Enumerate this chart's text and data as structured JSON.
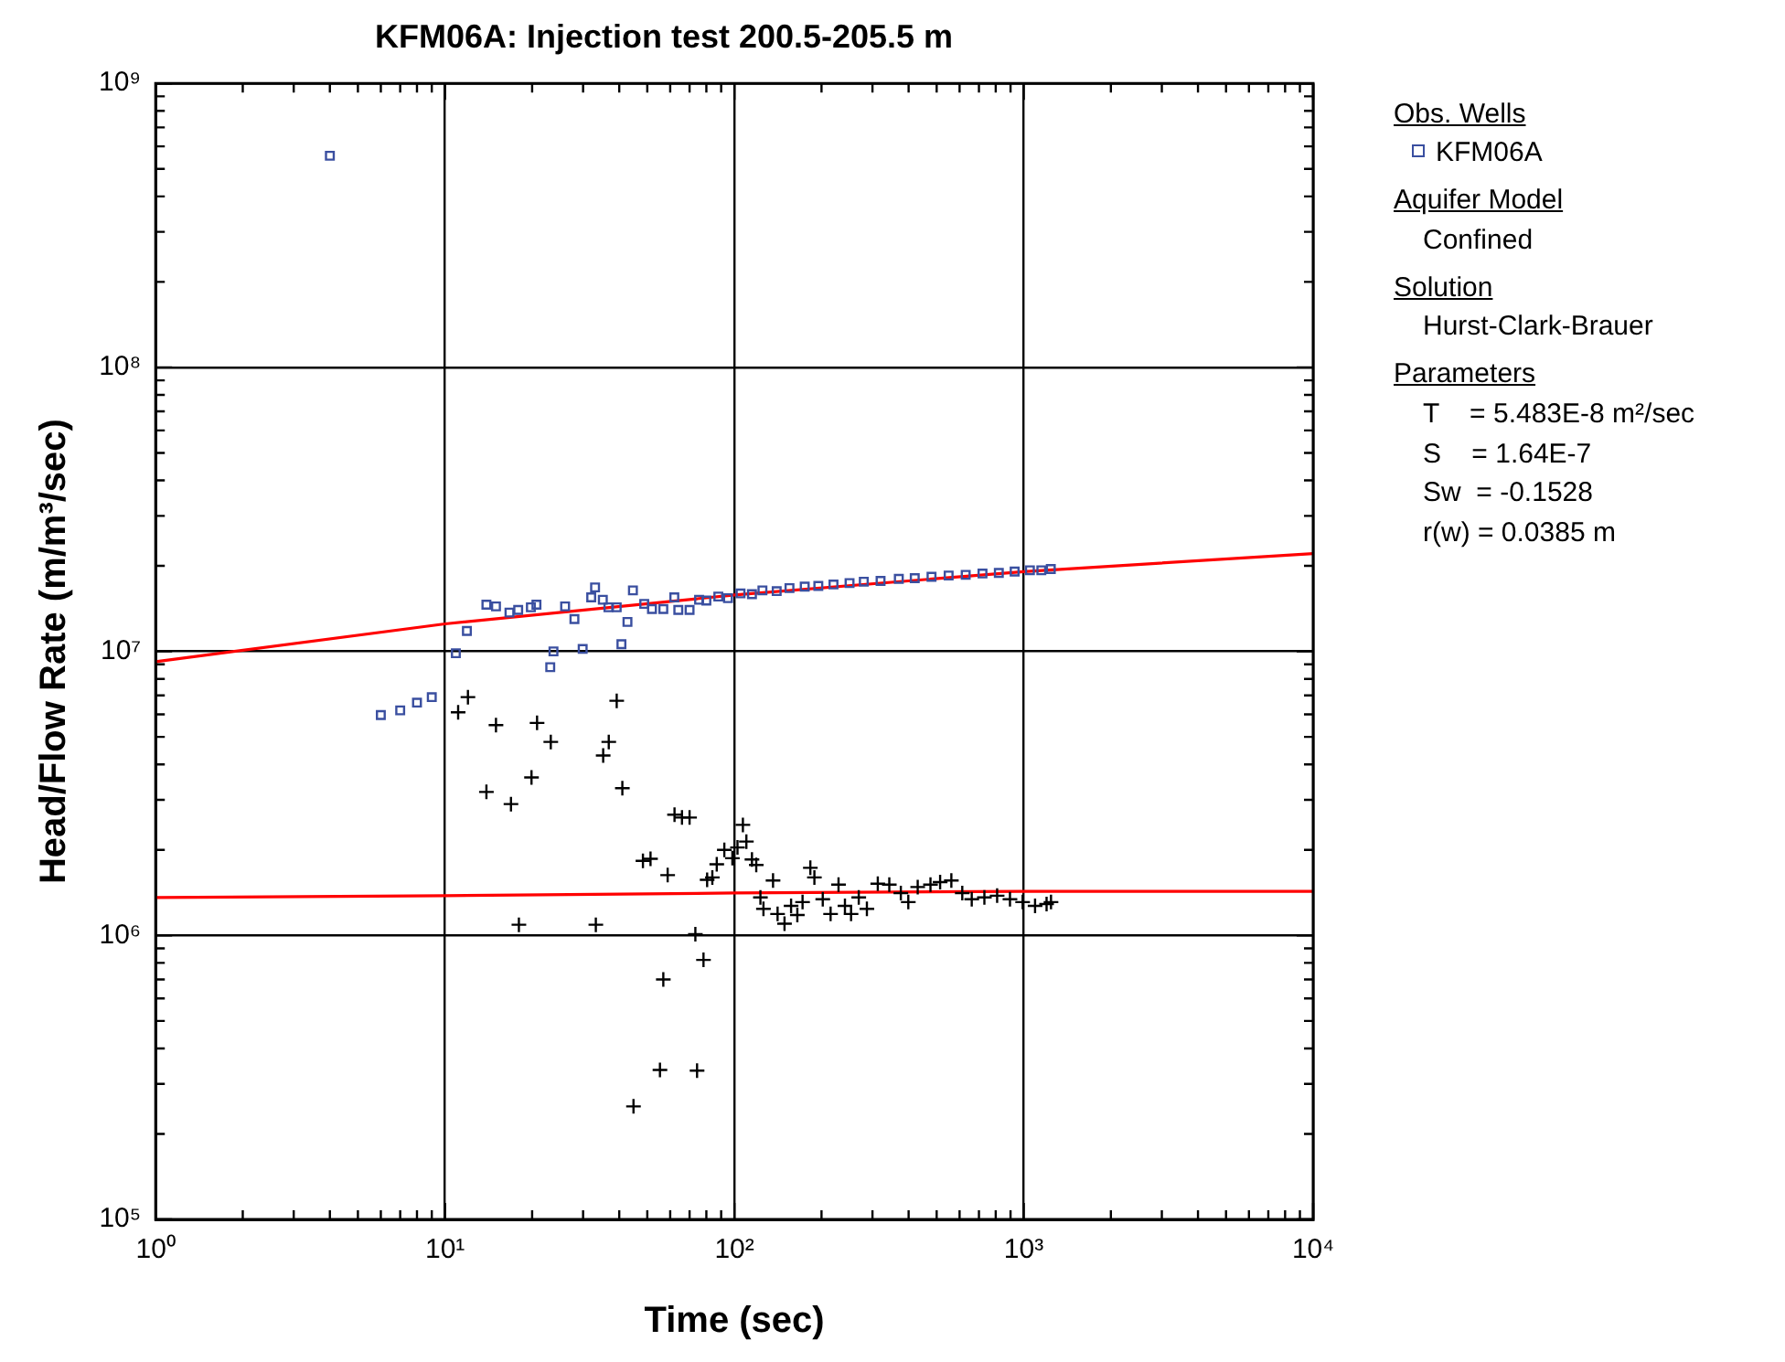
{
  "chart_data": {
    "type": "scatter",
    "title": "KFM06A: Injection test 200.5-205.5 m",
    "xlabel": "Time (sec)",
    "ylabel": "Head/Flow Rate (m/m³/sec)",
    "legend_title": "Obs. Wells",
    "legend": "right",
    "grid": true,
    "log": "xy",
    "xlim": [
      1,
      10000
    ],
    "ylim": [
      100000,
      1000000000
    ],
    "xticks": [
      {
        "value": 1,
        "label": "10⁰"
      },
      {
        "value": 2,
        "label": null
      },
      {
        "value": 3,
        "label": null
      },
      {
        "value": 4,
        "label": null
      },
      {
        "value": 5,
        "label": null
      },
      {
        "value": 6,
        "label": null
      },
      {
        "value": 7,
        "label": null
      },
      {
        "value": 8,
        "label": null
      },
      {
        "value": 9,
        "label": null
      },
      {
        "value": 10,
        "label": "10¹"
      },
      {
        "value": 20,
        "label": null
      },
      {
        "value": 30,
        "label": null
      },
      {
        "value": 40,
        "label": null
      },
      {
        "value": 50,
        "label": null
      },
      {
        "value": 60,
        "label": null
      },
      {
        "value": 70,
        "label": null
      },
      {
        "value": 80,
        "label": null
      },
      {
        "value": 90,
        "label": null
      },
      {
        "value": 100,
        "label": "10²"
      },
      {
        "value": 200,
        "label": null
      },
      {
        "value": 300,
        "label": null
      },
      {
        "value": 400,
        "label": null
      },
      {
        "value": 500,
        "label": null
      },
      {
        "value": 600,
        "label": null
      },
      {
        "value": 700,
        "label": null
      },
      {
        "value": 800,
        "label": null
      },
      {
        "value": 900,
        "label": null
      },
      {
        "value": 1000,
        "label": "10³"
      },
      {
        "value": 2000,
        "label": null
      },
      {
        "value": 3000,
        "label": null
      },
      {
        "value": 4000,
        "label": null
      },
      {
        "value": 5000,
        "label": null
      },
      {
        "value": 6000,
        "label": null
      },
      {
        "value": 7000,
        "label": null
      },
      {
        "value": 8000,
        "label": null
      },
      {
        "value": 9000,
        "label": null
      },
      {
        "value": 10000,
        "label": "10⁴"
      }
    ],
    "yticks": [
      {
        "value": 100000,
        "label": "10⁵"
      },
      {
        "value": 200000,
        "label": null
      },
      {
        "value": 300000,
        "label": null
      },
      {
        "value": 400000,
        "label": null
      },
      {
        "value": 500000,
        "label": null
      },
      {
        "value": 600000,
        "label": null
      },
      {
        "value": 700000,
        "label": null
      },
      {
        "value": 800000,
        "label": null
      },
      {
        "value": 900000,
        "label": null
      },
      {
        "value": 1000000,
        "label": "10⁶"
      },
      {
        "value": 2000000,
        "label": null
      },
      {
        "value": 3000000,
        "label": null
      },
      {
        "value": 4000000,
        "label": null
      },
      {
        "value": 5000000,
        "label": null
      },
      {
        "value": 6000000,
        "label": null
      },
      {
        "value": 7000000,
        "label": null
      },
      {
        "value": 8000000,
        "label": null
      },
      {
        "value": 9000000,
        "label": null
      },
      {
        "value": 10000000,
        "label": "10⁷"
      },
      {
        "value": 20000000,
        "label": null
      },
      {
        "value": 30000000,
        "label": null
      },
      {
        "value": 40000000,
        "label": null
      },
      {
        "value": 50000000,
        "label": null
      },
      {
        "value": 60000000,
        "label": null
      },
      {
        "value": 70000000,
        "label": null
      },
      {
        "value": 80000000,
        "label": null
      },
      {
        "value": 90000000,
        "label": null
      },
      {
        "value": 100000000,
        "label": "10⁸"
      },
      {
        "value": 200000000,
        "label": null
      },
      {
        "value": 300000000,
        "label": null
      },
      {
        "value": 400000000,
        "label": null
      },
      {
        "value": 500000000,
        "label": null
      },
      {
        "value": 600000000,
        "label": null
      },
      {
        "value": 700000000,
        "label": null
      },
      {
        "value": 800000000,
        "label": null
      },
      {
        "value": 900000000,
        "label": null
      },
      {
        "value": 1000000000,
        "label": "10⁹"
      }
    ],
    "series": [
      {
        "name": "KFM06A",
        "marker": "square",
        "color": "#3a4fa0",
        "x": [
          4,
          6,
          7,
          8,
          9,
          10.9,
          11.9,
          13.9,
          15,
          16.7,
          17.9,
          19.8,
          20.7,
          23.1,
          23.7,
          26,
          28,
          29.9,
          32,
          33,
          35.1,
          36.7,
          39.2,
          40.7,
          42.7,
          44.6,
          48.8,
          51.9,
          56.8,
          62,
          64,
          70,
          75.5,
          80,
          88,
          95,
          105,
          115,
          125,
          140,
          155,
          175,
          195,
          220,
          250,
          280,
          320,
          370,
          420,
          480,
          550,
          630,
          720,
          820,
          930,
          1050,
          1150,
          1240
        ],
        "values": [
          556000000,
          5970000,
          6200000,
          6600000,
          6900000,
          9850000,
          11800000,
          14600000,
          14400000,
          13700000,
          14000000,
          14300000,
          14600000,
          8800000,
          10000000,
          14400000,
          13000000,
          10200000,
          15500000,
          16800000,
          15200000,
          14300000,
          14300000,
          10600000,
          12700000,
          16400000,
          14700000,
          14100000,
          14100000,
          15500000,
          14000000,
          14000000,
          15200000,
          15100000,
          15600000,
          15400000,
          16000000,
          15900000,
          16400000,
          16300000,
          16700000,
          16900000,
          17000000,
          17200000,
          17400000,
          17600000,
          17700000,
          18000000,
          18100000,
          18300000,
          18500000,
          18600000,
          18800000,
          18900000,
          19100000,
          19300000,
          19300000,
          19500000
        ]
      },
      {
        "marker": "cross",
        "color": "#000000",
        "x": [
          11.1,
          12,
          13.9,
          15,
          16.9,
          18,
          19.9,
          20.8,
          23.2,
          33.2,
          35.2,
          36.8,
          39.2,
          41,
          44.8,
          48.3,
          51.3,
          55.3,
          56.8,
          58.8,
          62.1,
          65.9,
          70,
          73.3,
          74.3,
          78.2,
          80.5,
          83.9,
          86.9,
          92.3,
          98.4,
          102.5,
          107,
          110,
          115,
          119,
          123,
          126,
          136,
          141,
          149,
          157,
          165,
          172,
          183,
          189,
          202,
          215,
          229,
          241,
          253,
          269,
          287,
          313,
          343,
          376,
          399,
          430,
          476,
          514,
          562,
          613,
          661,
          731,
          809,
          896,
          991,
          1094,
          1199,
          1242
        ],
        "values": [
          6100000,
          6900000,
          3200000,
          5500000,
          2900000,
          1090000,
          3600000,
          5600000,
          4800000,
          1090000,
          4300000,
          4800000,
          6700000,
          3300000,
          250000,
          1830000,
          1860000,
          336000,
          700000,
          1630000,
          2660000,
          2600000,
          2600000,
          1010000,
          334000,
          820000,
          1570000,
          1600000,
          1780000,
          2000000,
          1870000,
          2040000,
          2450000,
          2140000,
          1850000,
          1770000,
          1360000,
          1240000,
          1560000,
          1190000,
          1100000,
          1270000,
          1180000,
          1310000,
          1730000,
          1600000,
          1340000,
          1190000,
          1510000,
          1270000,
          1190000,
          1360000,
          1240000,
          1520000,
          1510000,
          1410000,
          1310000,
          1480000,
          1510000,
          1540000,
          1560000,
          1410000,
          1340000,
          1360000,
          1380000,
          1340000,
          1310000,
          1270000,
          1290000,
          1310000
        ]
      },
      {
        "type": "line",
        "marker": "none",
        "color": "#ff0000",
        "x": [
          1,
          10,
          100,
          1000,
          10000
        ],
        "values": [
          9200000,
          12500000,
          15800000,
          19100000,
          22100000
        ]
      },
      {
        "type": "line",
        "marker": "none",
        "color": "#ff0000",
        "x": [
          1,
          10,
          100,
          1000,
          10000
        ],
        "values": [
          1360000,
          1380000,
          1410000,
          1430000,
          1430000
        ]
      }
    ],
    "annotations": [
      "Aquifer Model",
      "Confined",
      "Solution",
      "Hurst-Clark-Brauer",
      "Parameters",
      "T    = 5.483E-8 m²/sec",
      "S    = 1.64E-7",
      "Sw  = -0.1528",
      "r(w) = 0.0385 m"
    ]
  }
}
